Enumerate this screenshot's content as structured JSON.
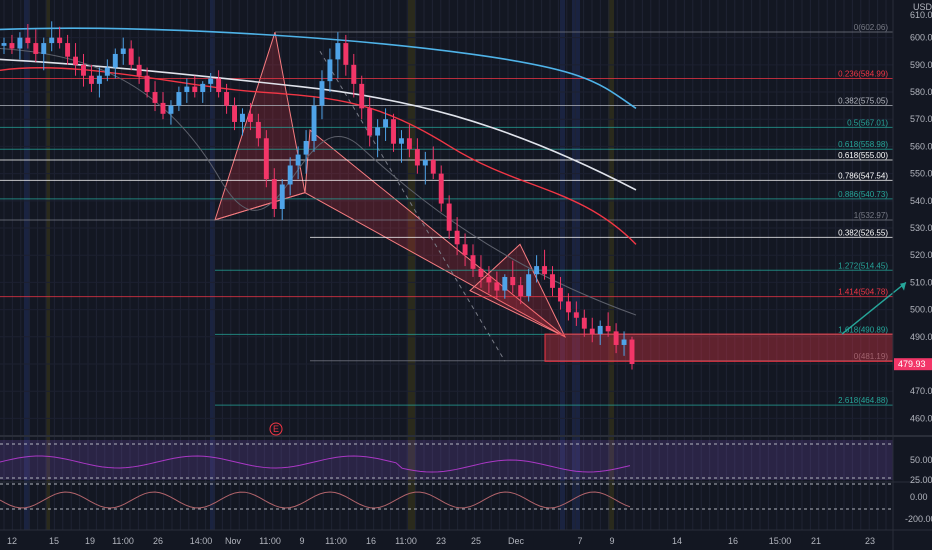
{
  "currency": "USD",
  "price_axis": {
    "ticks": [
      "600.00",
      "590.00",
      "580.00",
      "570.00",
      "560.00",
      "550.00",
      "540.00",
      "530.00",
      "520.00",
      "510.00",
      "500.00",
      "490.00",
      "480.00",
      "470.00",
      "460.00"
    ],
    "top_label": "610.00",
    "last_price_label": "479.93"
  },
  "time_axis": {
    "ticks": [
      "12",
      "15",
      "19",
      "11:00",
      "26",
      "14:00",
      "Nov",
      "11:00",
      "9",
      "11:00",
      "16",
      "11:00",
      "23",
      "25",
      "Dec",
      "7",
      "9",
      "14",
      "16",
      "15:00",
      "21",
      "23"
    ]
  },
  "rsi_axis": {
    "ticks": [
      "50.00",
      "25.00"
    ]
  },
  "cci_axis": {
    "ticks": [
      "0.00",
      "-200.00"
    ]
  },
  "event_marker": "E",
  "fib_levels": [
    {
      "label": "0(602.06)",
      "value": 602.06,
      "color": "#787b86"
    },
    {
      "label": "0.236(584.99)",
      "value": 584.99,
      "color": "#f23645"
    },
    {
      "label": "0.382(575.05)",
      "value": 575.05,
      "color": "#b2b5be"
    },
    {
      "label": "0.5(567.01)",
      "value": 567.01,
      "color": "#26a69a"
    },
    {
      "label": "0.618(558.98)",
      "value": 558.98,
      "color": "#26a69a"
    },
    {
      "label": "0.618(555.00)",
      "value": 555.0,
      "color": "#ffffff"
    },
    {
      "label": "0.786(547.54)",
      "value": 547.54,
      "color": "#ffffff"
    },
    {
      "label": "0.886(540.73)",
      "value": 540.73,
      "color": "#26a69a"
    },
    {
      "label": "1(532.97)",
      "value": 532.97,
      "color": "#787b86"
    },
    {
      "label": "0.382(526.55)",
      "value": 526.55,
      "color": "#ffffff"
    },
    {
      "label": "1.272(514.45)",
      "value": 514.45,
      "color": "#26a69a"
    },
    {
      "label": "1.414(504.78)",
      "value": 504.78,
      "color": "#f23645"
    },
    {
      "label": "1.618(490.89)",
      "value": 490.89,
      "color": "#26a69a"
    },
    {
      "label": "0(481.19)",
      "value": 481.19,
      "color": "#787b86"
    },
    {
      "label": "2.618(464.88)",
      "value": 464.88,
      "color": "#26a69a"
    }
  ],
  "chart_data": {
    "type": "candlestick",
    "ylim": [
      455,
      612
    ],
    "candles": [
      [
        597,
        600,
        594,
        598
      ],
      [
        598,
        601,
        594,
        596
      ],
      [
        596,
        602,
        592,
        600
      ],
      [
        600,
        605,
        596,
        598
      ],
      [
        598,
        603,
        591,
        594
      ],
      [
        594,
        600,
        588,
        598
      ],
      [
        598,
        606,
        595,
        600
      ],
      [
        600,
        604,
        596,
        598
      ],
      [
        598,
        601,
        590,
        593
      ],
      [
        593,
        598,
        586,
        590
      ],
      [
        590,
        594,
        582,
        586
      ],
      [
        586,
        590,
        580,
        583
      ],
      [
        583,
        589,
        578,
        586
      ],
      [
        586,
        592,
        584,
        589
      ],
      [
        589,
        596,
        585,
        594
      ],
      [
        594,
        600,
        590,
        596
      ],
      [
        596,
        599,
        588,
        590
      ],
      [
        590,
        593,
        583,
        586
      ],
      [
        586,
        589,
        578,
        580
      ],
      [
        580,
        584,
        573,
        576
      ],
      [
        576,
        580,
        570,
        572
      ],
      [
        572,
        577,
        568,
        575
      ],
      [
        575,
        582,
        573,
        580
      ],
      [
        580,
        585,
        576,
        582
      ],
      [
        582,
        586,
        578,
        580
      ],
      [
        580,
        584,
        576,
        583
      ],
      [
        583,
        587,
        580,
        585
      ],
      [
        585,
        588,
        578,
        580
      ],
      [
        580,
        583,
        572,
        575
      ],
      [
        575,
        578,
        566,
        569
      ],
      [
        569,
        574,
        564,
        572
      ],
      [
        572,
        576,
        566,
        569
      ],
      [
        569,
        572,
        560,
        563
      ],
      [
        563,
        566,
        545,
        548
      ],
      [
        548,
        552,
        534,
        537
      ],
      [
        537,
        548,
        533,
        546
      ],
      [
        546,
        556,
        542,
        553
      ],
      [
        553,
        560,
        548,
        557
      ],
      [
        557,
        566,
        550,
        562
      ],
      [
        562,
        578,
        558,
        575
      ],
      [
        575,
        588,
        570,
        584
      ],
      [
        584,
        596,
        580,
        592
      ],
      [
        592,
        602,
        585,
        598
      ],
      [
        598,
        601,
        586,
        590
      ],
      [
        590,
        594,
        578,
        583
      ],
      [
        583,
        586,
        570,
        574
      ],
      [
        574,
        578,
        560,
        564
      ],
      [
        564,
        570,
        556,
        567
      ],
      [
        567,
        574,
        562,
        570
      ],
      [
        570,
        572,
        558,
        561
      ],
      [
        561,
        566,
        554,
        563
      ],
      [
        563,
        568,
        556,
        559
      ],
      [
        559,
        563,
        550,
        553
      ],
      [
        553,
        558,
        546,
        555
      ],
      [
        555,
        560,
        548,
        550
      ],
      [
        550,
        553,
        536,
        539
      ],
      [
        539,
        542,
        526,
        529
      ],
      [
        529,
        534,
        520,
        524
      ],
      [
        524,
        528,
        516,
        520
      ],
      [
        520,
        524,
        512,
        515
      ],
      [
        515,
        520,
        508,
        512
      ],
      [
        512,
        516,
        506,
        510
      ],
      [
        510,
        514,
        504,
        507
      ],
      [
        507,
        513,
        504,
        512
      ],
      [
        512,
        518,
        506,
        509
      ],
      [
        509,
        512,
        502,
        505
      ],
      [
        505,
        515,
        503,
        513
      ],
      [
        513,
        520,
        510,
        516
      ],
      [
        516,
        522,
        511,
        513
      ],
      [
        513,
        516,
        505,
        508
      ],
      [
        508,
        512,
        500,
        503
      ],
      [
        503,
        506,
        496,
        499
      ],
      [
        499,
        503,
        494,
        497
      ],
      [
        497,
        500,
        490,
        493
      ],
      [
        493,
        497,
        488,
        491
      ],
      [
        491,
        496,
        487,
        494
      ],
      [
        494,
        499,
        490,
        492
      ],
      [
        492,
        495,
        484,
        487
      ],
      [
        487,
        492,
        483,
        489
      ],
      [
        489,
        490,
        478,
        480
      ]
    ],
    "ma_fast_color": "#f23645",
    "ma_white_color": "#e0e3eb",
    "ma_blue_color": "#4fb3e8",
    "up_color": "#4fa3e8",
    "down_color": "#f23668"
  }
}
